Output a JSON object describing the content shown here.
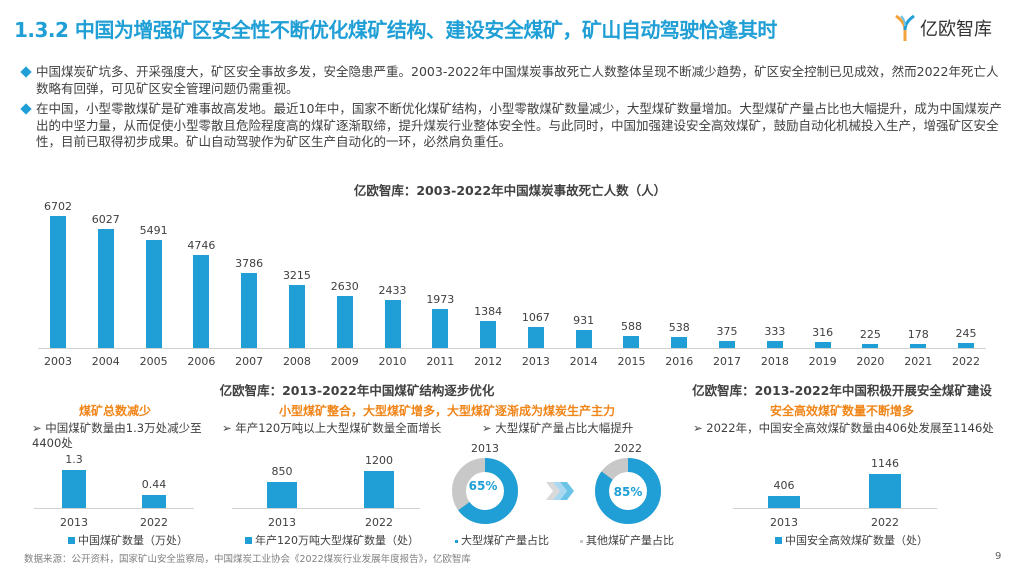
{
  "header": {
    "title": "1.3.2 中国为增强矿区安全性不断优化煤矿结构、建设安全煤矿，矿山自动驾驶恰逢其时",
    "logo_text": "亿欧智库"
  },
  "bullets": [
    "中国煤炭矿坑多、开采强度大，矿区安全事故多发，安全隐患严重。2003-2022年中国煤炭事故死亡人数整体呈现不断减少趋势，矿区安全控制已见成效，然而2022年死亡人数略有回弹，可见矿区安全管理问题仍需重视。",
    "在中国，小型零散煤矿是矿难事故高发地。最近10年中，国家不断优化煤矿结构，小型零散煤矿数量减少，大型煤矿数量增加。大型煤矿产量占比也大幅提升，成为中国煤炭产出的中坚力量，从而促使小型零散且危险程度高的煤矿逐渐取缔，提升煤炭行业整体安全性。与此同时，中国加强建设安全高效煤矿，鼓励自动化机械投入生产，增强矿区安全性，目前已取得初步成果。矿山自动驾驶作为矿区生产自动化的一环，必然肩负重任。"
  ],
  "section2_title": "亿欧智库：2013-2022年中国煤矿结构逐步优化",
  "section3_title": "亿欧智库：2013-2022年中国积极开展安全煤矿建设",
  "colors": {
    "accent": "#1f9fd5",
    "orange": "#f08519",
    "gray": "#c8c8c8"
  },
  "chart_data": [
    {
      "type": "bar",
      "title": "亿欧智库：2003-2022年中国煤炭事故死亡人数（人）",
      "categories": [
        "2003",
        "2004",
        "2005",
        "2006",
        "2007",
        "2008",
        "2009",
        "2010",
        "2011",
        "2012",
        "2013",
        "2014",
        "2015",
        "2016",
        "2017",
        "2018",
        "2019",
        "2020",
        "2021",
        "2022"
      ],
      "values": [
        6702,
        6027,
        5491,
        4746,
        3786,
        3215,
        2630,
        2433,
        1973,
        1384,
        1067,
        931,
        588,
        538,
        375,
        333,
        316,
        225,
        178,
        245
      ],
      "ylim": [
        0,
        6702
      ]
    },
    {
      "type": "bar",
      "subtitle": "煤矿总数减少",
      "note": "中国煤矿数量由1.3万处减少至4400处",
      "categories": [
        "2013",
        "2022"
      ],
      "values": [
        "1.3",
        "0.44"
      ],
      "legend": "中国煤矿数量（万处）"
    },
    {
      "type": "bar",
      "subtitle": "小型煤矿整合，大型煤矿增多，大型煤矿逐渐成为煤炭生产主力",
      "note": "年产120万吨以上大型煤矿数量全面增长",
      "categories": [
        "2013",
        "2022"
      ],
      "values": [
        "850",
        "1200"
      ],
      "legend": "年产120万吨大型煤矿数量（处）"
    },
    {
      "type": "pie",
      "note": "大型煤矿产量占比大幅提升",
      "charts": [
        {
          "year": "2013",
          "value": 65,
          "label": "65%"
        },
        {
          "year": "2022",
          "value": 85,
          "label": "85%"
        }
      ],
      "legend": [
        "大型煤矿产量占比",
        "其他煤矿产量占比"
      ]
    },
    {
      "type": "bar",
      "subtitle": "安全高效煤矿数量不断增多",
      "note": "2022年，中国安全高效煤矿数量由406处发展至1146处",
      "categories": [
        "2013",
        "2022"
      ],
      "values": [
        "406",
        "1146"
      ],
      "legend": "中国安全高效煤矿数量（处）"
    }
  ],
  "footer": {
    "source": "数据来源：公开资料，国家矿山安全监察局，中国煤炭工业协会《2022煤炭行业发展年度报告》，亿欧智库",
    "page": "9"
  }
}
